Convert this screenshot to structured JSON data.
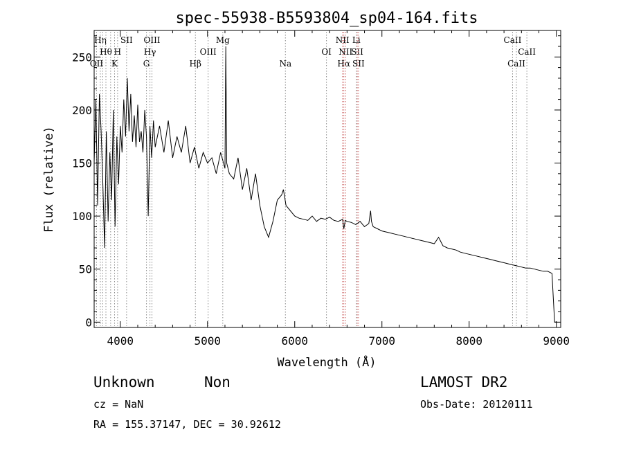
{
  "chart_data": {
    "type": "line",
    "title": "spec-55938-B5593804_sp04-164.fits",
    "xlabel": "Wavelength (Å)",
    "ylabel": "Flux (relative)",
    "xlim": [
      3700,
      9050
    ],
    "ylim": [
      -5,
      275
    ],
    "x_ticks": [
      4000,
      5000,
      6000,
      7000,
      8000,
      9000
    ],
    "y_ticks": [
      0,
      50,
      100,
      150,
      200,
      250
    ],
    "grid": false,
    "series": [
      {
        "x": [
          3700,
          3720,
          3740,
          3760,
          3780,
          3800,
          3820,
          3840,
          3860,
          3880,
          3900,
          3920,
          3940,
          3960,
          3980,
          4000,
          4020,
          4040,
          4060,
          4080,
          4100,
          4120,
          4140,
          4160,
          4180,
          4200,
          4220,
          4240,
          4260,
          4280,
          4300,
          4320,
          4340,
          4360,
          4380,
          4400,
          4450,
          4500,
          4550,
          4600,
          4650,
          4700,
          4750,
          4800,
          4850,
          4900,
          4950,
          5000,
          5050,
          5100,
          5150,
          5200,
          5210,
          5220,
          5250,
          5300,
          5350,
          5400,
          5450,
          5500,
          5550,
          5600,
          5650,
          5700,
          5750,
          5800,
          5850,
          5870,
          5900,
          5950,
          6000,
          6050,
          6100,
          6150,
          6200,
          6250,
          6300,
          6350,
          6400,
          6450,
          6500,
          6550,
          6563,
          6580,
          6600,
          6650,
          6700,
          6750,
          6800,
          6850,
          6870,
          6880,
          6900,
          6950,
          7000,
          7050,
          7100,
          7150,
          7200,
          7250,
          7300,
          7350,
          7400,
          7450,
          7500,
          7550,
          7600,
          7650,
          7700,
          7750,
          7800,
          7850,
          7900,
          7950,
          8000,
          8050,
          8100,
          8150,
          8200,
          8250,
          8300,
          8350,
          8400,
          8450,
          8500,
          8550,
          8600,
          8650,
          8700,
          8750,
          8800,
          8850,
          8900,
          8950,
          8980,
          8990,
          9000
        ],
        "values": [
          150,
          210,
          110,
          215,
          180,
          130,
          70,
          180,
          95,
          160,
          115,
          200,
          90,
          175,
          130,
          185,
          160,
          210,
          175,
          230,
          180,
          215,
          170,
          195,
          165,
          205,
          170,
          180,
          160,
          200,
          175,
          100,
          185,
          155,
          190,
          165,
          185,
          160,
          190,
          155,
          175,
          160,
          185,
          150,
          165,
          145,
          160,
          150,
          155,
          140,
          160,
          145,
          260,
          150,
          140,
          135,
          155,
          125,
          145,
          115,
          140,
          110,
          90,
          80,
          95,
          115,
          120,
          125,
          110,
          105,
          100,
          98,
          97,
          96,
          100,
          95,
          98,
          97,
          99,
          96,
          95,
          97,
          88,
          96,
          95,
          94,
          92,
          95,
          90,
          93,
          105,
          95,
          90,
          88,
          86,
          85,
          84,
          83,
          82,
          81,
          80,
          79,
          78,
          77,
          76,
          75,
          74,
          80,
          72,
          70,
          69,
          68,
          66,
          65,
          64,
          63,
          62,
          61,
          60,
          59,
          58,
          57,
          56,
          55,
          54,
          53,
          52,
          51,
          51,
          50,
          49,
          48,
          48,
          46,
          0,
          0,
          0
        ]
      }
    ],
    "vlines": [
      {
        "x": 3727,
        "label": "OII",
        "row": 3,
        "color": "#888888"
      },
      {
        "x": 3771,
        "label": "Hη",
        "row": 1,
        "color": "#888888"
      },
      {
        "x": 3798,
        "label": "",
        "row": 0,
        "color": "#888888"
      },
      {
        "x": 3835,
        "label": "Hθ",
        "row": 2,
        "color": "#888888"
      },
      {
        "x": 3889,
        "label": "",
        "row": 0,
        "color": "#888888"
      },
      {
        "x": 3934,
        "label": "K",
        "row": 3,
        "color": "#888888"
      },
      {
        "x": 3969,
        "label": "H",
        "row": 2,
        "color": "#888888"
      },
      {
        "x": 4072,
        "label": "SII",
        "row": 1,
        "color": "#888888"
      },
      {
        "x": 4300,
        "label": "G",
        "row": 3,
        "color": "#888888"
      },
      {
        "x": 4340,
        "label": "Hγ",
        "row": 2,
        "color": "#888888"
      },
      {
        "x": 4363,
        "label": "OIII",
        "row": 1,
        "color": "#888888"
      },
      {
        "x": 4861,
        "label": "Hβ",
        "row": 3,
        "color": "#888888"
      },
      {
        "x": 5007,
        "label": "OIII",
        "row": 2,
        "color": "#888888"
      },
      {
        "x": 5175,
        "label": "Mg",
        "row": 1,
        "color": "#888888"
      },
      {
        "x": 5893,
        "label": "Na",
        "row": 3,
        "color": "#888888"
      },
      {
        "x": 6364,
        "label": "OI",
        "row": 2,
        "color": "#888888"
      },
      {
        "x": 6548,
        "label": "NII",
        "row": 1,
        "color": "#cc6666"
      },
      {
        "x": 6563,
        "label": "Hα",
        "row": 3,
        "color": "#cc6666"
      },
      {
        "x": 6583,
        "label": "NII",
        "row": 2,
        "color": "#cc6666"
      },
      {
        "x": 6707,
        "label": "Li",
        "row": 1,
        "color": "#888888"
      },
      {
        "x": 6717,
        "label": "SII",
        "row": 2,
        "color": "#cc6666"
      },
      {
        "x": 6731,
        "label": "SII",
        "row": 3,
        "color": "#cc6666"
      },
      {
        "x": 8498,
        "label": "CaII",
        "row": 1,
        "color": "#888888"
      },
      {
        "x": 8542,
        "label": "CaII",
        "row": 3,
        "color": "#888888"
      },
      {
        "x": 8662,
        "label": "CaII",
        "row": 2,
        "color": "#888888"
      }
    ]
  },
  "info": {
    "class": "Unknown",
    "subclass": "Non",
    "survey": "LAMOST DR2",
    "cz": "cz = NaN",
    "obs_date": "Obs-Date: 20120111",
    "coords": "RA = 155.37147, DEC =  30.92612"
  }
}
